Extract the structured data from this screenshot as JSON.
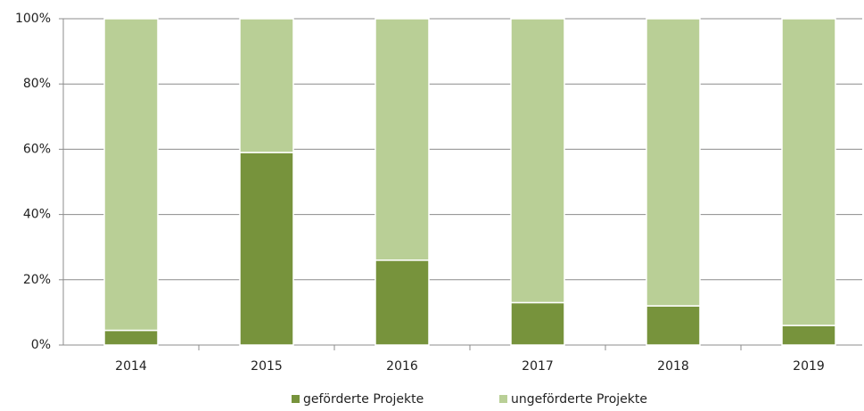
{
  "chart_data": {
    "type": "stacked_bar",
    "categories": [
      "2014",
      "2015",
      "2016",
      "2017",
      "2018",
      "2019"
    ],
    "series": [
      {
        "name": "geförderte Projekte",
        "color": "#77933c",
        "values": [
          4.5,
          59,
          26,
          13,
          12,
          6
        ]
      },
      {
        "name": "ungeförderte Projekte",
        "color": "#b9cf96",
        "values": [
          95.5,
          41,
          74,
          87,
          88,
          94
        ]
      }
    ],
    "ylim": [
      0,
      100
    ],
    "yticks": [
      {
        "value": 0,
        "label": "0%"
      },
      {
        "value": 20,
        "label": "20%"
      },
      {
        "value": 40,
        "label": "40%"
      },
      {
        "value": 60,
        "label": "60%"
      },
      {
        "value": 80,
        "label": "80%"
      },
      {
        "value": 100,
        "label": "100%"
      }
    ],
    "grid": true
  }
}
